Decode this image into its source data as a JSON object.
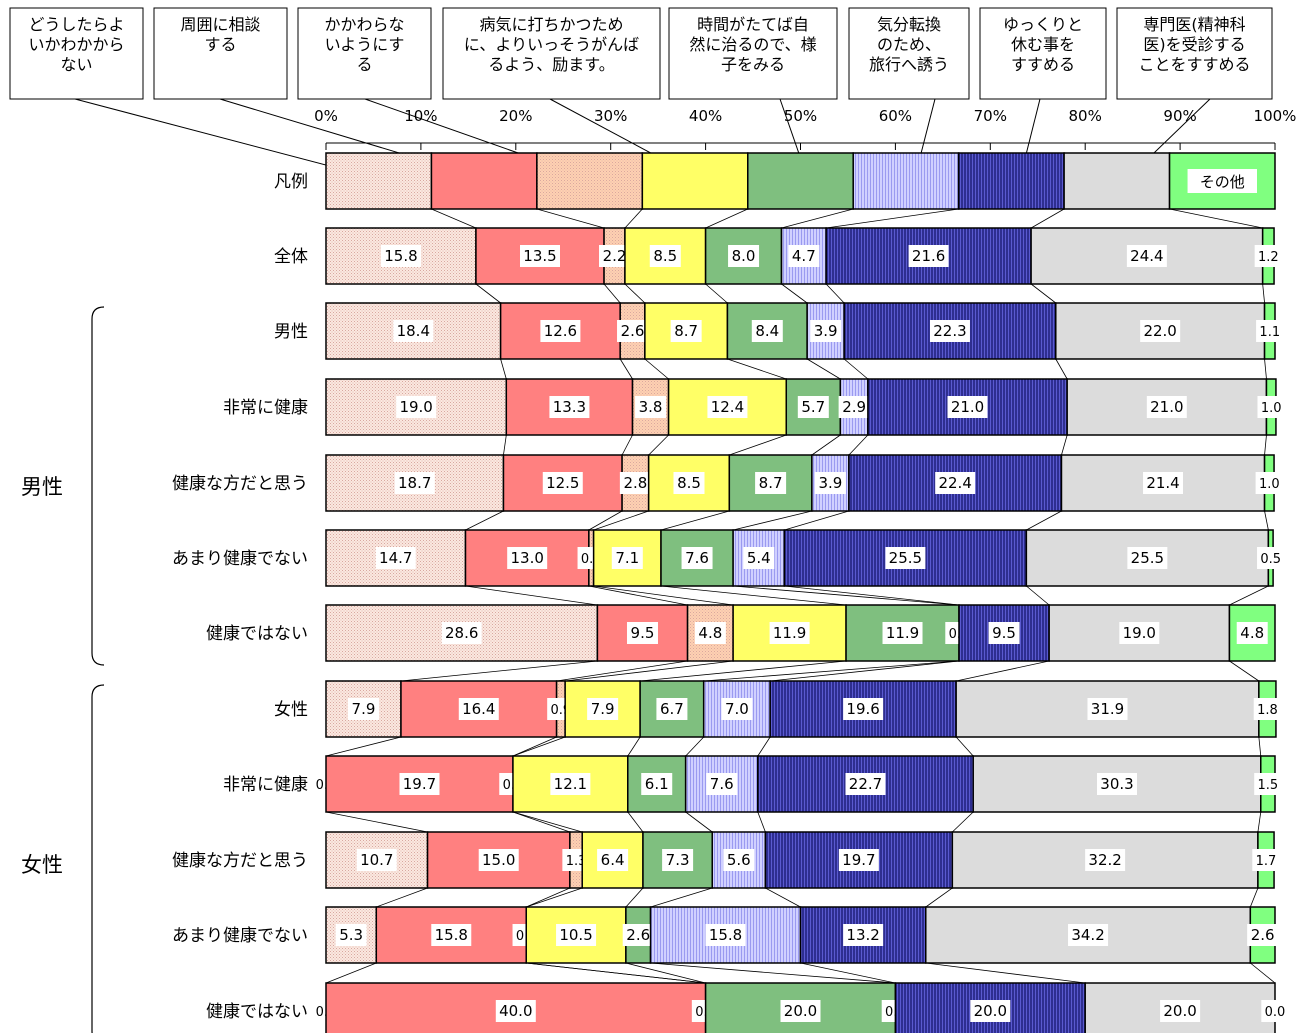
{
  "chart_data": {
    "type": "bar",
    "stacked": true,
    "orientation": "horizontal",
    "percent_scale": true,
    "xlim": [
      0,
      100
    ],
    "x_ticks": [
      "0%",
      "10%",
      "20%",
      "30%",
      "40%",
      "50%",
      "60%",
      "70%",
      "80%",
      "90%",
      "100%"
    ],
    "legend_row_label": "凡例",
    "legend_text_in_bar": "その他",
    "series": [
      {
        "name": "どうしたらよいかわからない",
        "color": "#fbe8e0",
        "pattern": "dots"
      },
      {
        "name": "周囲に相談する",
        "color": "#ff8080",
        "pattern": "none"
      },
      {
        "name": "かかわらないようにする",
        "color": "#ffd0b0",
        "pattern": "dots"
      },
      {
        "name": "病気に打ちかつために、よりいっそうがんばるよう、励ます。",
        "color": "#ffff66",
        "pattern": "none"
      },
      {
        "name": "時間がたてば自然に治るので、様子をみる",
        "color": "#7fbf7f",
        "pattern": "none"
      },
      {
        "name": "気分転換のため、旅行へ誘う",
        "color": "#d0d0ff",
        "pattern": "vlines"
      },
      {
        "name": "ゆっくりと休む事をすすめる",
        "color": "#2e2e90",
        "pattern": "vlines"
      },
      {
        "name": "専門医(精神科医)を受診することをすすめる",
        "color": "#dcdcdc",
        "pattern": "none"
      },
      {
        "name": "その他",
        "color": "#80ff80",
        "pattern": "none"
      }
    ],
    "groups": [
      {
        "label": "男性",
        "rows": [
          1,
          2,
          3,
          4,
          5
        ]
      },
      {
        "label": "女性",
        "rows": [
          6,
          7,
          8,
          9,
          10
        ]
      }
    ],
    "rows": [
      {
        "label": "全体",
        "values": [
          15.8,
          13.5,
          2.2,
          8.5,
          8.0,
          4.7,
          21.6,
          24.4,
          1.2
        ]
      },
      {
        "label": "男性",
        "values": [
          18.4,
          12.6,
          2.6,
          8.7,
          8.4,
          3.9,
          22.3,
          22.0,
          1.1
        ]
      },
      {
        "label": "非常に健康",
        "values": [
          19.0,
          13.3,
          3.8,
          12.4,
          5.7,
          2.9,
          21.0,
          21.0,
          1.0
        ]
      },
      {
        "label": "健康な方だと思う",
        "values": [
          18.7,
          12.5,
          2.8,
          8.5,
          8.7,
          3.9,
          22.4,
          21.4,
          1.0
        ]
      },
      {
        "label": "あまり健康でない",
        "values": [
          14.7,
          13.0,
          0.5,
          7.1,
          7.6,
          5.4,
          25.5,
          25.5,
          0.5
        ]
      },
      {
        "label": "健康ではない",
        "values": [
          28.6,
          9.5,
          4.8,
          11.9,
          11.9,
          0.0,
          9.5,
          19.0,
          4.8
        ]
      },
      {
        "label": "女性",
        "values": [
          7.9,
          16.4,
          0.9,
          7.9,
          6.7,
          7.0,
          19.6,
          31.9,
          1.8
        ]
      },
      {
        "label": "非常に健康",
        "values": [
          0.0,
          19.7,
          0.0,
          12.1,
          6.1,
          7.6,
          22.7,
          30.3,
          1.5
        ]
      },
      {
        "label": "健康な方だと思う",
        "values": [
          10.7,
          15.0,
          1.3,
          6.4,
          7.3,
          5.6,
          19.7,
          32.2,
          1.7
        ]
      },
      {
        "label": "あまり健康でない",
        "values": [
          5.3,
          15.8,
          0.0,
          10.5,
          2.6,
          15.8,
          13.2,
          34.2,
          2.6
        ]
      },
      {
        "label": "健康ではない",
        "values": [
          0.0,
          40.0,
          0.0,
          0.0,
          20.0,
          0.0,
          20.0,
          20.0,
          0.0
        ]
      }
    ]
  }
}
